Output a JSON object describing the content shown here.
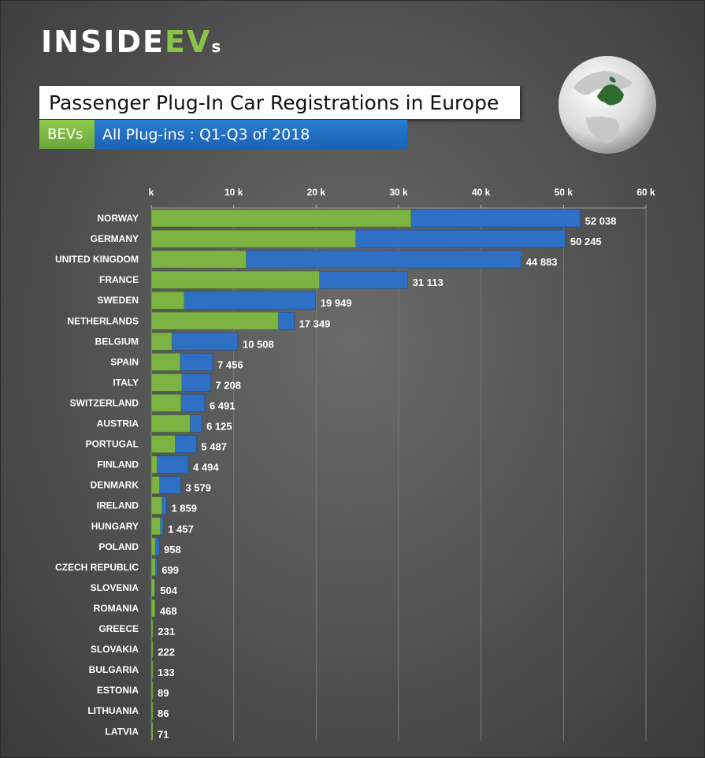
{
  "brand": {
    "part1": "INSIDE",
    "part2": "EV",
    "part3": "s"
  },
  "header": {
    "title": "Passenger Plug-In Car Registrations in Europe",
    "legend_bev": "BEVs",
    "legend_all": "All Plug-ins : Q1-Q3 of 2018"
  },
  "colors": {
    "bev": "#7cb342",
    "all": "#2f6fc4",
    "background": "#555555"
  },
  "chart_data": {
    "type": "bar",
    "orientation": "horizontal",
    "stacked_overlay": true,
    "xlim": [
      0,
      60000
    ],
    "x_ticks": [
      "k",
      "10 k",
      "20 k",
      "30 k",
      "40 k",
      "50 k",
      "60 k"
    ],
    "x_tick_values": [
      0,
      10000,
      20000,
      30000,
      40000,
      50000,
      60000
    ],
    "categories": [
      "NORWAY",
      "GERMANY",
      "UNITED KINGDOM",
      "FRANCE",
      "SWEDEN",
      "NETHERLANDS",
      "BELGIUM",
      "SPAIN",
      "ITALY",
      "SWITZERLAND",
      "AUSTRIA",
      "PORTUGAL",
      "FINLAND",
      "DENMARK",
      "IRELAND",
      "HUNGARY",
      "POLAND",
      "CZECH REPUBLIC",
      "SLOVENIA",
      "ROMANIA",
      "GREECE",
      "SLOVAKIA",
      "BULGARIA",
      "ESTONIA",
      "LITHUANIA",
      "LATVIA"
    ],
    "series": [
      {
        "name": "All Plug-ins : Q1-Q3 of 2018",
        "values": [
          52038,
          50245,
          44883,
          31113,
          19949,
          17349,
          10508,
          7456,
          7208,
          6491,
          6125,
          5487,
          4494,
          3579,
          1859,
          1457,
          958,
          699,
          504,
          468,
          231,
          222,
          133,
          89,
          86,
          71
        ]
      },
      {
        "name": "BEVs",
        "values": [
          31500,
          24800,
          11500,
          20400,
          4000,
          15400,
          2500,
          3500,
          3700,
          3600,
          4700,
          2900,
          700,
          1000,
          1300,
          1100,
          500,
          500,
          400,
          450,
          150,
          150,
          80,
          40,
          40,
          40
        ]
      }
    ],
    "value_labels": [
      "52 038",
      "50 245",
      "44 883",
      "31 113",
      "19 949",
      "17 349",
      "10 508",
      "7 456",
      "7 208",
      "6 491",
      "6 125",
      "5 487",
      "4 494",
      "3 579",
      "1 859",
      "1 457",
      "958",
      "699",
      "504",
      "468",
      "231",
      "222",
      "133",
      "89",
      "86",
      "71"
    ]
  }
}
